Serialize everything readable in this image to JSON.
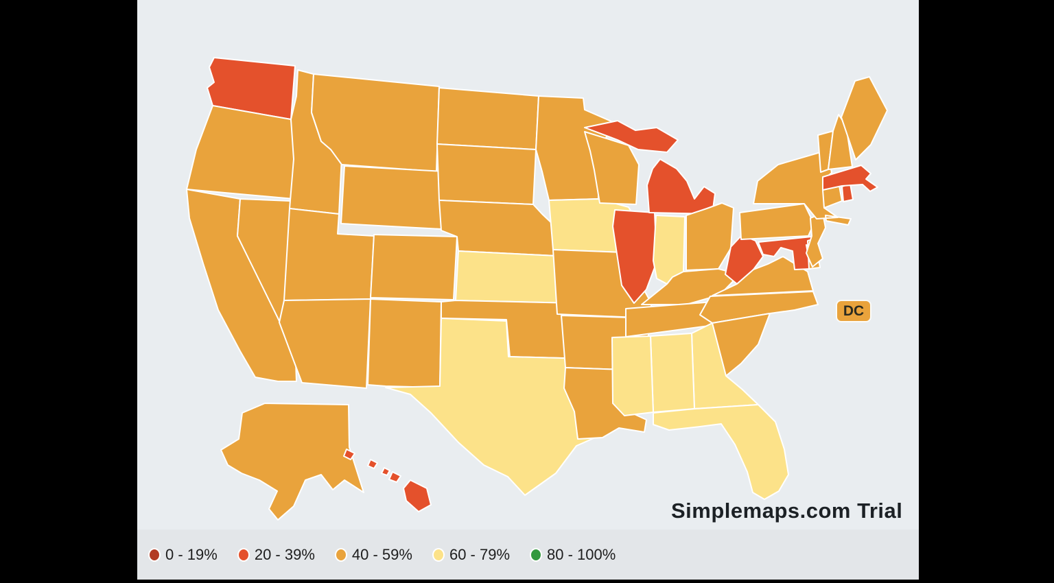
{
  "app": {
    "watermark": "Simplemaps.com Trial"
  },
  "map": {
    "background_color": "#e9edf0",
    "state_border_color": "#ffffff",
    "dc_label": "DC",
    "states": [
      {
        "postal": "WA",
        "name": "Washington",
        "category": "20-39"
      },
      {
        "postal": "OR",
        "name": "Oregon",
        "category": "40-59"
      },
      {
        "postal": "CA",
        "name": "California",
        "category": "40-59"
      },
      {
        "postal": "NV",
        "name": "Nevada",
        "category": "40-59"
      },
      {
        "postal": "ID",
        "name": "Idaho",
        "category": "40-59"
      },
      {
        "postal": "MT",
        "name": "Montana",
        "category": "40-59"
      },
      {
        "postal": "WY",
        "name": "Wyoming",
        "category": "40-59"
      },
      {
        "postal": "UT",
        "name": "Utah",
        "category": "40-59"
      },
      {
        "postal": "CO",
        "name": "Colorado",
        "category": "40-59"
      },
      {
        "postal": "AZ",
        "name": "Arizona",
        "category": "40-59"
      },
      {
        "postal": "NM",
        "name": "New Mexico",
        "category": "40-59"
      },
      {
        "postal": "ND",
        "name": "North Dakota",
        "category": "40-59"
      },
      {
        "postal": "SD",
        "name": "South Dakota",
        "category": "40-59"
      },
      {
        "postal": "NE",
        "name": "Nebraska",
        "category": "40-59"
      },
      {
        "postal": "KS",
        "name": "Kansas",
        "category": "60-79"
      },
      {
        "postal": "OK",
        "name": "Oklahoma",
        "category": "40-59"
      },
      {
        "postal": "TX",
        "name": "Texas",
        "category": "60-79"
      },
      {
        "postal": "MN",
        "name": "Minnesota",
        "category": "40-59"
      },
      {
        "postal": "IA",
        "name": "Iowa",
        "category": "60-79"
      },
      {
        "postal": "MO",
        "name": "Missouri",
        "category": "40-59"
      },
      {
        "postal": "AR",
        "name": "Arkansas",
        "category": "40-59"
      },
      {
        "postal": "LA",
        "name": "Louisiana",
        "category": "40-59"
      },
      {
        "postal": "WI",
        "name": "Wisconsin",
        "category": "40-59"
      },
      {
        "postal": "IL",
        "name": "Illinois",
        "category": "20-39"
      },
      {
        "postal": "MI",
        "name": "Michigan",
        "category": "20-39"
      },
      {
        "postal": "IN",
        "name": "Indiana",
        "category": "60-79"
      },
      {
        "postal": "OH",
        "name": "Ohio",
        "category": "40-59"
      },
      {
        "postal": "KY",
        "name": "Kentucky",
        "category": "40-59"
      },
      {
        "postal": "TN",
        "name": "Tennessee",
        "category": "40-59"
      },
      {
        "postal": "MS",
        "name": "Mississippi",
        "category": "60-79"
      },
      {
        "postal": "AL",
        "name": "Alabama",
        "category": "60-79"
      },
      {
        "postal": "GA",
        "name": "Georgia",
        "category": "60-79"
      },
      {
        "postal": "FL",
        "name": "Florida",
        "category": "60-79"
      },
      {
        "postal": "SC",
        "name": "South Carolina",
        "category": "40-59"
      },
      {
        "postal": "NC",
        "name": "North Carolina",
        "category": "40-59"
      },
      {
        "postal": "VA",
        "name": "Virginia",
        "category": "40-59"
      },
      {
        "postal": "WV",
        "name": "West Virginia",
        "category": "20-39"
      },
      {
        "postal": "MD",
        "name": "Maryland",
        "category": "20-39"
      },
      {
        "postal": "DE",
        "name": "Delaware",
        "category": "40-59"
      },
      {
        "postal": "PA",
        "name": "Pennsylvania",
        "category": "40-59"
      },
      {
        "postal": "NJ",
        "name": "New Jersey",
        "category": "40-59"
      },
      {
        "postal": "NY",
        "name": "New York",
        "category": "40-59"
      },
      {
        "postal": "CT",
        "name": "Connecticut",
        "category": "40-59"
      },
      {
        "postal": "RI",
        "name": "Rhode Island",
        "category": "20-39"
      },
      {
        "postal": "MA",
        "name": "Massachusetts",
        "category": "20-39"
      },
      {
        "postal": "VT",
        "name": "Vermont",
        "category": "40-59"
      },
      {
        "postal": "NH",
        "name": "New Hampshire",
        "category": "40-59"
      },
      {
        "postal": "ME",
        "name": "Maine",
        "category": "40-59"
      },
      {
        "postal": "AK",
        "name": "Alaska",
        "category": "40-59"
      },
      {
        "postal": "HI",
        "name": "Hawaii",
        "category": "20-39"
      },
      {
        "postal": "DC",
        "name": "District of Columbia",
        "category": "40-59"
      }
    ]
  },
  "legend": {
    "background_color": "#e3e6e9",
    "items": [
      {
        "label": "0 - 19%",
        "key": "0-19",
        "color": "#b23b24"
      },
      {
        "label": "20 - 39%",
        "key": "20-39",
        "color": "#e4512c"
      },
      {
        "label": "40 - 59%",
        "key": "40-59",
        "color": "#e9a33c"
      },
      {
        "label": "60 - 79%",
        "key": "60-79",
        "color": "#fce289"
      },
      {
        "label": "80 - 100%",
        "key": "80-100",
        "color": "#33993e"
      }
    ]
  }
}
